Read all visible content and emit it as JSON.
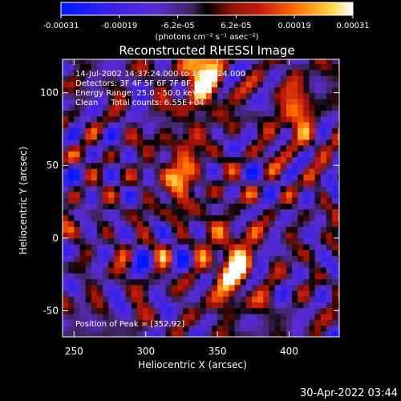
{
  "chart_data": {
    "type": "heatmap",
    "title": "Reconstructed RHESSI Image",
    "xlabel": "Heliocentric X (arcsec)",
    "ylabel": "Heliocentric Y (arcsec)",
    "xlim": [
      242,
      435
    ],
    "ylim": [
      -68,
      123
    ],
    "xticks": [
      250,
      300,
      350,
      400
    ],
    "yticks": [
      -50,
      0,
      50,
      100
    ],
    "grid": false,
    "colorbar": {
      "min": -0.00031,
      "max": 0.00031,
      "tick_labels": [
        "-0.00031",
        "-0.00019",
        "-6.2e-05",
        "6.2e-05",
        "0.00019",
        "0.00031"
      ],
      "unit_label": "(photons cm⁻² s⁻¹ asec⁻²)",
      "colors": [
        "#0018ff",
        "#5a2bd0",
        "#3e2458",
        "#000000",
        "#c41a10",
        "#ff6a00",
        "#ffd040",
        "#ffffff"
      ]
    },
    "annotations": [
      "14-Jul-2002 14:37:24.000 to 14:39:24.000",
      "Detectors: 3F 4F 5F 6F 7F 8F, Att 0",
      "Energy Range: 25.0 - 50.0 keV",
      "Clean     Total counts: 6.55E+04"
    ],
    "peak_label": "Position of Peak = [352,92]",
    "peak_position": [
      352,
      92
    ],
    "bright_regions": [
      {
        "x": 340,
        "y": 115,
        "intensity": 1.0
      },
      {
        "x": 360,
        "y": -20,
        "intensity": 0.85
      },
      {
        "x": 325,
        "y": 45,
        "intensity": 0.6
      },
      {
        "x": 405,
        "y": 85,
        "intensity": 0.55
      }
    ],
    "timestamp": "30-Apr-2022 03:44"
  }
}
